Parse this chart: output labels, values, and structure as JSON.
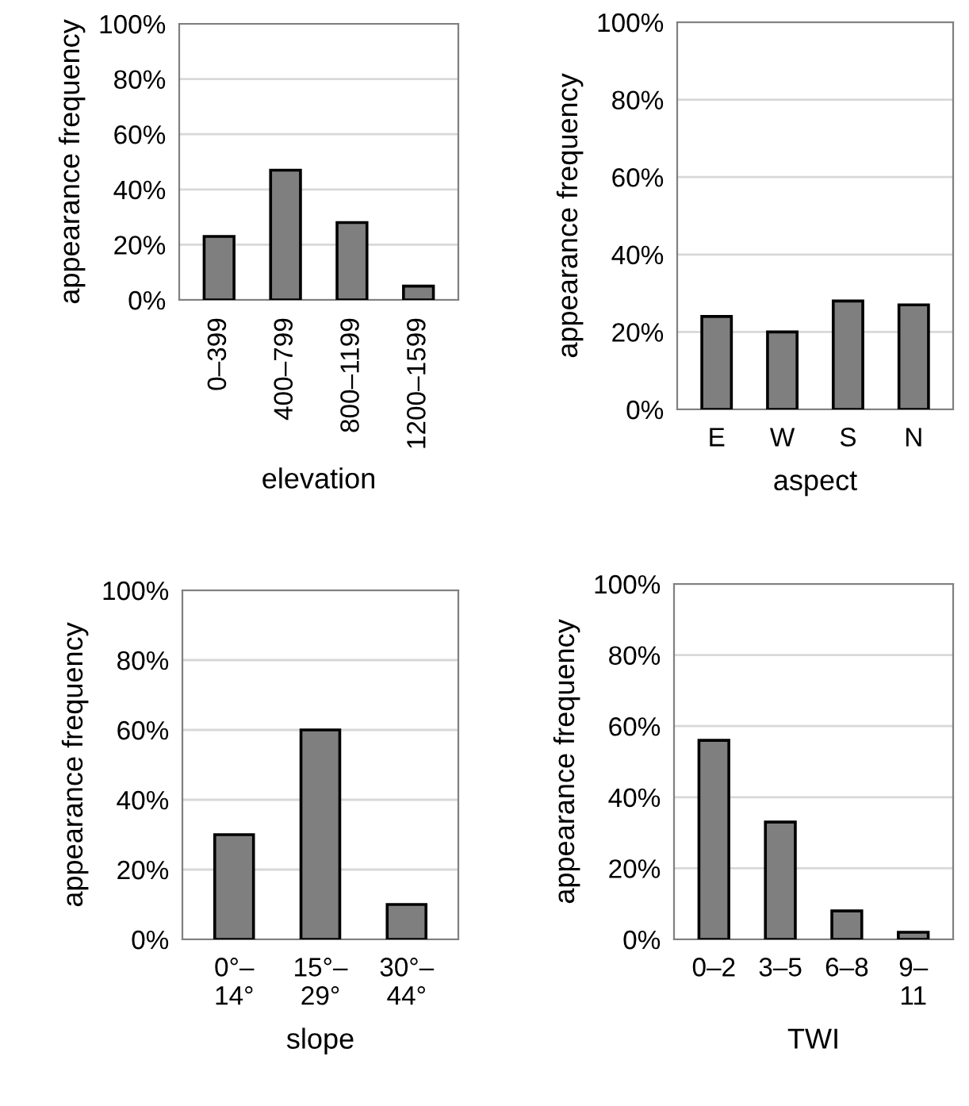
{
  "chart_data": [
    {
      "type": "bar",
      "xlabel": "elevation",
      "ylabel": "appearance frequency",
      "categories": [
        "0–399",
        "400–799",
        "800–1199",
        "1200–1599"
      ],
      "values": [
        23,
        47,
        28,
        5
      ],
      "color": "#7f7f7f",
      "ylim": [
        0,
        100
      ],
      "yticks": [
        {
          "value": 0,
          "label": "0%"
        },
        {
          "value": 20,
          "label": "20%"
        },
        {
          "value": 40,
          "label": "40%"
        },
        {
          "value": 60,
          "label": "60%"
        },
        {
          "value": 80,
          "label": "80%"
        },
        {
          "value": 100,
          "label": "100%"
        }
      ],
      "grid": "y"
    },
    {
      "type": "bar",
      "xlabel": "aspect",
      "ylabel": "appearance frequency",
      "categories": [
        "E",
        "W",
        "S",
        "N"
      ],
      "values": [
        24,
        20,
        28,
        27
      ],
      "color": "#7f7f7f",
      "ylim": [
        0,
        100
      ],
      "yticks": [
        {
          "value": 0,
          "label": "0%"
        },
        {
          "value": 20,
          "label": "20%"
        },
        {
          "value": 40,
          "label": "40%"
        },
        {
          "value": 60,
          "label": "60%"
        },
        {
          "value": 80,
          "label": "80%"
        },
        {
          "value": 100,
          "label": "100%"
        }
      ],
      "grid": "y"
    },
    {
      "type": "bar",
      "xlabel": "slope",
      "ylabel": "appearance frequency",
      "categories": [
        "0°–\n14°",
        "15°–\n29°",
        "30°–\n44°"
      ],
      "values": [
        30,
        60,
        10
      ],
      "color": "#7f7f7f",
      "ylim": [
        0,
        100
      ],
      "yticks": [
        {
          "value": 0,
          "label": "0%"
        },
        {
          "value": 20,
          "label": "20%"
        },
        {
          "value": 40,
          "label": "40%"
        },
        {
          "value": 60,
          "label": "60%"
        },
        {
          "value": 80,
          "label": "80%"
        },
        {
          "value": 100,
          "label": "100%"
        }
      ],
      "grid": "y"
    },
    {
      "type": "bar",
      "xlabel": "TWI",
      "ylabel": "appearance frequency",
      "categories": [
        "0–2",
        "3–5",
        "6–8",
        "9–\n11"
      ],
      "values": [
        56,
        33,
        8,
        2
      ],
      "color": "#7f7f7f",
      "ylim": [
        0,
        100
      ],
      "yticks": [
        {
          "value": 0,
          "label": "0%"
        },
        {
          "value": 20,
          "label": "20%"
        },
        {
          "value": 40,
          "label": "40%"
        },
        {
          "value": 60,
          "label": "60%"
        },
        {
          "value": 80,
          "label": "80%"
        },
        {
          "value": 100,
          "label": "100%"
        }
      ],
      "grid": "y"
    }
  ]
}
